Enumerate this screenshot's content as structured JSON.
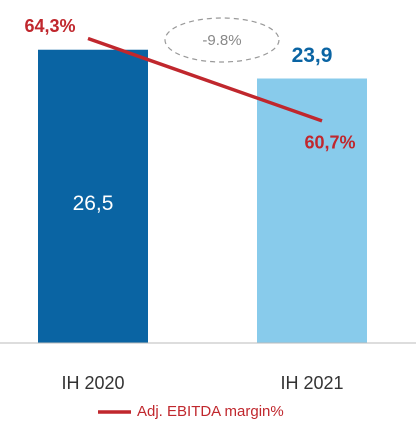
{
  "chart_data": {
    "type": "bar",
    "categories": [
      "IH 2020",
      "IH 2021"
    ],
    "series": [
      {
        "name": "Adj. EBITDA",
        "type": "bar",
        "colors": [
          "#0a64a3",
          "#88cbeb"
        ],
        "values": [
          26.5,
          23.9
        ],
        "value_labels": [
          "26,5",
          "23,9"
        ],
        "label_colors": [
          "#ffffff",
          "#0a64a3"
        ]
      },
      {
        "name": "Adj. EBITDA margin%",
        "type": "line",
        "axis": "y2",
        "color": "#c0272d",
        "values": [
          64.3,
          60.7
        ],
        "value_labels": [
          "64,3%",
          "60,7%"
        ]
      }
    ],
    "annotation": "-9.8%",
    "ylim": [
      0,
      30
    ],
    "y2lim": [
      51,
      65.5
    ],
    "grid": false
  }
}
